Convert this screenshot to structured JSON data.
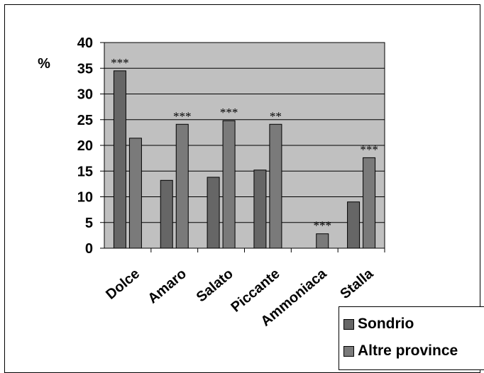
{
  "chart_data": {
    "type": "bar",
    "ylabel": "%",
    "ylim": [
      0,
      40
    ],
    "yticks": [
      "0",
      "5",
      "10",
      "15",
      "20",
      "25",
      "30",
      "35",
      "40"
    ],
    "grid": true,
    "legend_position": "bottom-right",
    "categories": [
      "Dolce",
      "Amaro",
      "Salato",
      "Piccante",
      "Ammoniaca",
      "Stalla"
    ],
    "series": [
      {
        "name": "Sondrio",
        "values": [
          34.5,
          13.2,
          13.8,
          15.2,
          0,
          9.0
        ],
        "color": "#666666"
      },
      {
        "name": "Altre province",
        "values": [
          21.4,
          24.1,
          24.8,
          24.1,
          2.8,
          17.6
        ],
        "color": "#7a7a7a"
      }
    ],
    "annotations": [
      {
        "category": "Dolce",
        "series": "Sondrio",
        "text": "***"
      },
      {
        "category": "Amaro",
        "series": "Altre province",
        "text": "***"
      },
      {
        "category": "Salato",
        "series": "Altre province",
        "text": "***"
      },
      {
        "category": "Piccante",
        "series": "Altre province",
        "text": "**"
      },
      {
        "category": "Ammoniaca",
        "series": "Altre province",
        "text": "***"
      },
      {
        "category": "Stalla",
        "series": "Altre province",
        "text": "***"
      }
    ],
    "colors": {
      "plot_background": "#c0c0c0",
      "gridline": "#000000"
    }
  }
}
